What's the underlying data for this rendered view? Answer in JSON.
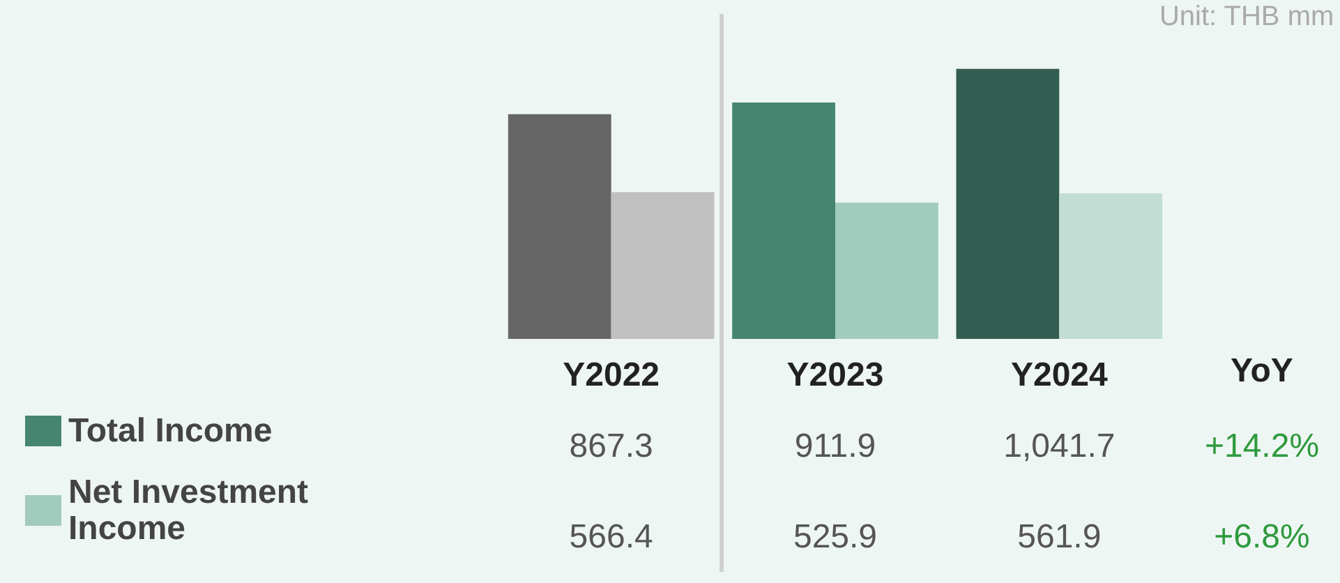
{
  "chart_data": {
    "type": "bar",
    "categories": [
      "Y2022",
      "Y2023",
      "Y2024"
    ],
    "series": [
      {
        "name": "Total Income",
        "color": "#468671",
        "colors": [
          "#666666",
          "#468671",
          "#335d51"
        ],
        "values": [
          867.3,
          911.9,
          1041.7
        ],
        "value_labels": [
          "867.3",
          "911.9",
          "1,041.7"
        ]
      },
      {
        "name": "Net Investment Income",
        "color": "#a0cbbd",
        "colors": [
          "#c0c0c0",
          "#a0cbbd",
          "#c2ddd4"
        ],
        "values": [
          566.4,
          525.9,
          561.9
        ],
        "value_labels": [
          "566.4",
          "525.9",
          "561.9"
        ]
      }
    ],
    "annotations": [
      "Unit: THB mm",
      "YoY",
      "+14.2%",
      "+6.8%"
    ],
    "legend": "bottom left",
    "grid": false
  }
}
